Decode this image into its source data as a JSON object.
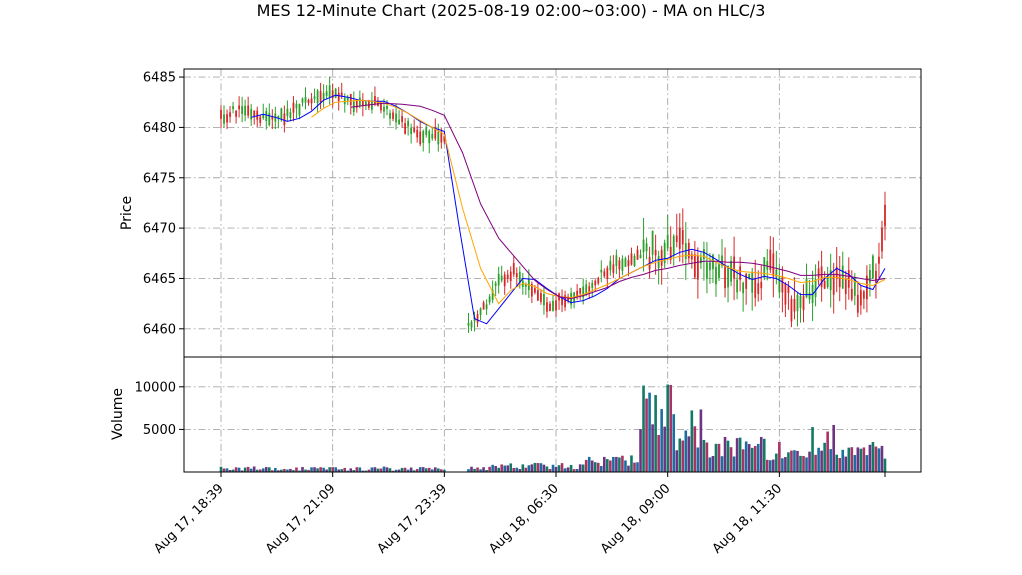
{
  "chart_data": {
    "type": "candlestick",
    "title": "MES 12-Minute Chart (2025-08-19 02:00~03:00) - MA on HLC/3",
    "ylabel_price": "Price",
    "ylabel_volume": "Volume",
    "ylim_price": [
      6457.2,
      6485.8
    ],
    "ylim_volume": [
      0,
      13500
    ],
    "price_ticks": [
      "6460",
      "6465",
      "6470",
      "6475",
      "6480",
      "6485"
    ],
    "volume_ticks": [
      "5000",
      "10000"
    ],
    "x_index_range": [
      0,
      220
    ],
    "x_ticks": [
      {
        "label": "Aug 17, 18:39",
        "index": 0
      },
      {
        "label": "Aug 17, 21:09",
        "index": 37
      },
      {
        "label": "Aug 17, 23:39",
        "index": 74
      },
      {
        "label": "Aug 18, 06:30",
        "index": 111
      },
      {
        "label": "Aug 18, 09:00",
        "index": 148
      },
      {
        "label": "Aug 18, 11:30",
        "index": 185
      }
    ],
    "grid": true,
    "up_color": "#2ca02c",
    "down_color": "#d62728",
    "volume_colors": [
      "#117a65",
      "#a93266",
      "#1a6fa0",
      "#6c3483"
    ],
    "ma_series": [
      {
        "color": "#0000ff",
        "points": [
          [
            10,
            6481.0
          ],
          [
            14,
            6481.3
          ],
          [
            18,
            6481.0
          ],
          [
            22,
            6480.6
          ],
          [
            26,
            6480.9
          ],
          [
            30,
            6481.6
          ],
          [
            34,
            6482.7
          ],
          [
            38,
            6483.2
          ],
          [
            42,
            6483.0
          ],
          [
            46,
            6482.7
          ],
          [
            50,
            6482.6
          ],
          [
            54,
            6482.6
          ],
          [
            58,
            6482.1
          ],
          [
            62,
            6481.4
          ],
          [
            66,
            6480.6
          ],
          [
            70,
            6480.0
          ],
          [
            74,
            6479.6
          ],
          [
            79,
            6470.0
          ],
          [
            84,
            6461.0
          ],
          [
            88,
            6460.5
          ],
          [
            92,
            6462.0
          ],
          [
            96,
            6463.5
          ],
          [
            100,
            6465.0
          ],
          [
            104,
            6464.9
          ],
          [
            108,
            6464.0
          ],
          [
            112,
            6463.2
          ],
          [
            116,
            6462.6
          ],
          [
            120,
            6462.8
          ],
          [
            124,
            6463.3
          ],
          [
            128,
            6464.0
          ],
          [
            132,
            6465.0
          ],
          [
            136,
            6465.6
          ],
          [
            140,
            6466.2
          ],
          [
            144,
            6466.8
          ],
          [
            148,
            6467.0
          ],
          [
            152,
            6467.6
          ],
          [
            156,
            6467.9
          ],
          [
            160,
            6467.6
          ],
          [
            164,
            6466.9
          ],
          [
            168,
            6466.1
          ],
          [
            172,
            6465.4
          ],
          [
            176,
            6464.9
          ],
          [
            180,
            6465.2
          ],
          [
            184,
            6465.0
          ],
          [
            188,
            6464.3
          ],
          [
            192,
            6463.4
          ],
          [
            196,
            6463.4
          ],
          [
            200,
            6465.0
          ],
          [
            204,
            6466.0
          ],
          [
            208,
            6465.4
          ],
          [
            212,
            6464.3
          ],
          [
            216,
            6463.9
          ],
          [
            220,
            6466.0
          ]
        ]
      },
      {
        "color": "#ffa500",
        "points": [
          [
            30,
            6481.0
          ],
          [
            34,
            6481.9
          ],
          [
            38,
            6482.5
          ],
          [
            42,
            6482.6
          ],
          [
            46,
            6482.7
          ],
          [
            50,
            6482.6
          ],
          [
            54,
            6482.4
          ],
          [
            58,
            6482.0
          ],
          [
            62,
            6481.4
          ],
          [
            66,
            6480.7
          ],
          [
            70,
            6480.0
          ],
          [
            74,
            6479.3
          ],
          [
            80,
            6472.0
          ],
          [
            86,
            6466.0
          ],
          [
            92,
            6462.5
          ],
          [
            96,
            6463.8
          ],
          [
            100,
            6464.5
          ],
          [
            104,
            6464.2
          ],
          [
            108,
            6463.5
          ],
          [
            112,
            6463.2
          ],
          [
            116,
            6463.1
          ],
          [
            120,
            6463.4
          ],
          [
            124,
            6463.9
          ],
          [
            128,
            6464.4
          ],
          [
            132,
            6465.0
          ],
          [
            136,
            6465.6
          ],
          [
            140,
            6466.2
          ],
          [
            144,
            6466.6
          ],
          [
            148,
            6466.9
          ],
          [
            152,
            6467.2
          ],
          [
            156,
            6467.3
          ],
          [
            160,
            6467.2
          ],
          [
            164,
            6466.6
          ],
          [
            168,
            6466.1
          ],
          [
            172,
            6465.7
          ],
          [
            176,
            6465.6
          ],
          [
            180,
            6465.5
          ],
          [
            184,
            6465.3
          ],
          [
            188,
            6465.0
          ],
          [
            192,
            6464.6
          ],
          [
            196,
            6464.7
          ],
          [
            200,
            6465.1
          ],
          [
            204,
            6465.1
          ],
          [
            208,
            6464.9
          ],
          [
            212,
            6464.5
          ],
          [
            216,
            6464.3
          ],
          [
            220,
            6464.9
          ]
        ]
      },
      {
        "color": "#800080",
        "points": [
          [
            43,
            6482.0
          ],
          [
            48,
            6482.2
          ],
          [
            54,
            6482.4
          ],
          [
            60,
            6482.3
          ],
          [
            66,
            6482.1
          ],
          [
            70,
            6481.7
          ],
          [
            74,
            6481.2
          ],
          [
            80,
            6477.5
          ],
          [
            86,
            6472.4
          ],
          [
            92,
            6469.0
          ],
          [
            96,
            6467.6
          ],
          [
            100,
            6466.2
          ],
          [
            104,
            6464.8
          ],
          [
            108,
            6463.9
          ],
          [
            112,
            6463.2
          ],
          [
            116,
            6463.0
          ],
          [
            120,
            6463.3
          ],
          [
            124,
            6463.7
          ],
          [
            128,
            6464.1
          ],
          [
            132,
            6464.7
          ],
          [
            136,
            6465.1
          ],
          [
            140,
            6465.4
          ],
          [
            144,
            6465.8
          ],
          [
            148,
            6466.0
          ],
          [
            152,
            6466.3
          ],
          [
            156,
            6466.5
          ],
          [
            160,
            6466.7
          ],
          [
            164,
            6466.7
          ],
          [
            168,
            6466.6
          ],
          [
            172,
            6466.6
          ],
          [
            176,
            6466.5
          ],
          [
            180,
            6466.3
          ],
          [
            184,
            6466.0
          ],
          [
            188,
            6465.7
          ],
          [
            192,
            6465.3
          ],
          [
            196,
            6465.3
          ],
          [
            200,
            6465.4
          ],
          [
            204,
            6465.4
          ],
          [
            208,
            6465.2
          ],
          [
            212,
            6465.0
          ],
          [
            216,
            6464.8
          ],
          [
            220,
            6465.0
          ]
        ]
      }
    ]
  }
}
